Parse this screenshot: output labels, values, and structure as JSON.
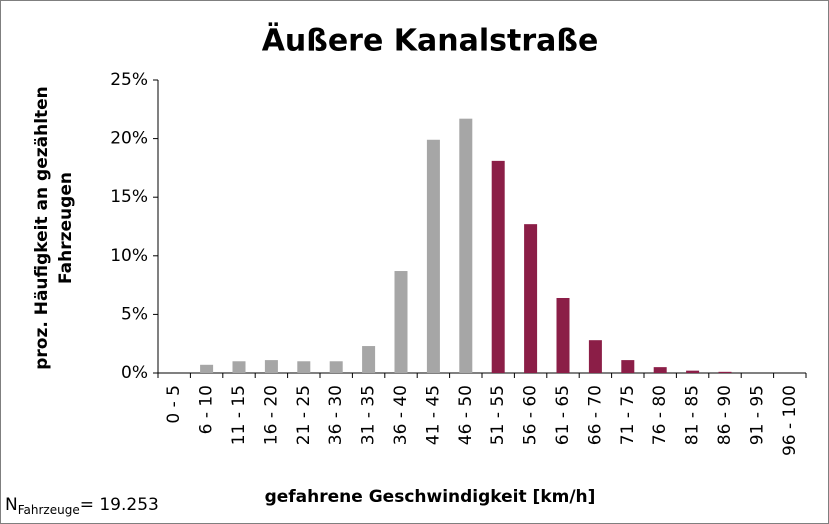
{
  "chart_data": {
    "type": "bar",
    "title": "Äußere Kanalstraße",
    "y_label": [
      "proz. Häufigkeit an gezählten",
      "Fahrzeugen"
    ],
    "x_label": "gefahrene Geschwindigkeit [km/h]",
    "note": {
      "prefix": "N",
      "subscript": "Fahrzeuge",
      "text": "= 19.253"
    },
    "categories": [
      "0 - 5",
      "6 - 10",
      "11 - 15",
      "16 - 20",
      "21 - 25",
      "36 - 30",
      "31 - 35",
      "36 - 40",
      "41 - 45",
      "46 - 50",
      "51 - 55",
      "56 - 60",
      "61 - 65",
      "66 - 70",
      "71 - 75",
      "76 - 80",
      "81 - 85",
      "86 - 90",
      "91 - 95",
      "96 - 100"
    ],
    "values": [
      0,
      0.7,
      1.0,
      1.1,
      1.0,
      1.0,
      2.3,
      8.7,
      19.9,
      21.7,
      18.1,
      12.7,
      6.4,
      2.8,
      1.1,
      0.5,
      0.2,
      0.1,
      0,
      0
    ],
    "colors": [
      "#a6a6a6",
      "#a6a6a6",
      "#a6a6a6",
      "#a6a6a6",
      "#a6a6a6",
      "#a6a6a6",
      "#a6a6a6",
      "#a6a6a6",
      "#a6a6a6",
      "#a6a6a6",
      "#8b1e47",
      "#8b1e47",
      "#8b1e47",
      "#8b1e47",
      "#8b1e47",
      "#8b1e47",
      "#8b1e47",
      "#8b1e47",
      "#8b1e47",
      "#8b1e47"
    ],
    "ylim": [
      0,
      25
    ],
    "yticks": [
      {
        "value": 0,
        "label": "0%"
      },
      {
        "value": 5,
        "label": "5%"
      },
      {
        "value": 10,
        "label": "10%"
      },
      {
        "value": 15,
        "label": "15%"
      },
      {
        "value": 20,
        "label": "20%"
      },
      {
        "value": 25,
        "label": "25%"
      }
    ],
    "grid": false
  }
}
